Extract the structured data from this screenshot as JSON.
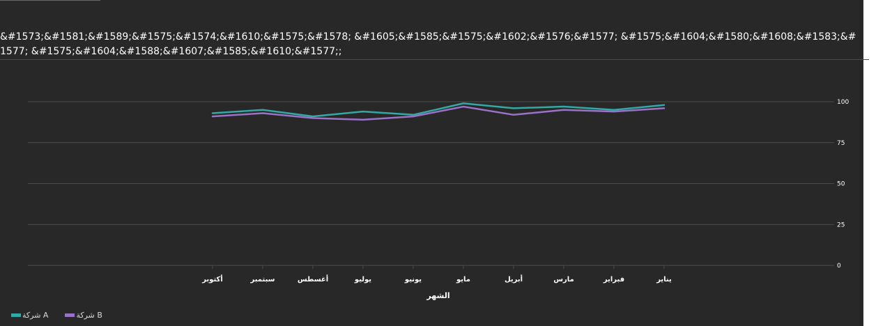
{
  "colors": {
    "background": "#282828",
    "gridline": "#4c4c4c",
    "axis_text": "#ffffff",
    "series_a": "#32a9a5",
    "series_b": "#9a72c8"
  },
  "chart_data": {
    "type": "line",
    "title": "&#1573;&#1581;&#1589;&#1575;&#1574;&#1610;&#1575;&#1578; &#1605;&#1585;&#1575;&#1602;&#1576;&#1577; &#1575;&#1604;&#1580;&#1608;&#1583;&#1577; &#1575;&#1604;&#1588;&#1607;&#1585;&#1610;&#1577;;",
    "xlabel": "الشهر",
    "ylabel": "",
    "x_direction": "right-to-left",
    "categories": [
      "يناير",
      "فبراير",
      "مارس",
      "أبريل",
      "مايو",
      "يونيو",
      "يوليو",
      "أغسطس",
      "سبتمبر",
      "أكتوبر"
    ],
    "yticks": [
      0,
      25,
      50,
      75,
      100
    ],
    "ylim": [
      0,
      100
    ],
    "y_axis_side": "right",
    "grid": true,
    "legend_position": "bottom-left",
    "series": [
      {
        "name": "شركة A",
        "color": "#32a9a5",
        "values": [
          98,
          95,
          97,
          96,
          99,
          92,
          94,
          91,
          95,
          93
        ]
      },
      {
        "name": "شركة B",
        "color": "#9a72c8",
        "values": [
          96,
          94,
          95,
          92,
          97,
          91,
          89,
          90,
          93,
          91
        ]
      }
    ]
  }
}
